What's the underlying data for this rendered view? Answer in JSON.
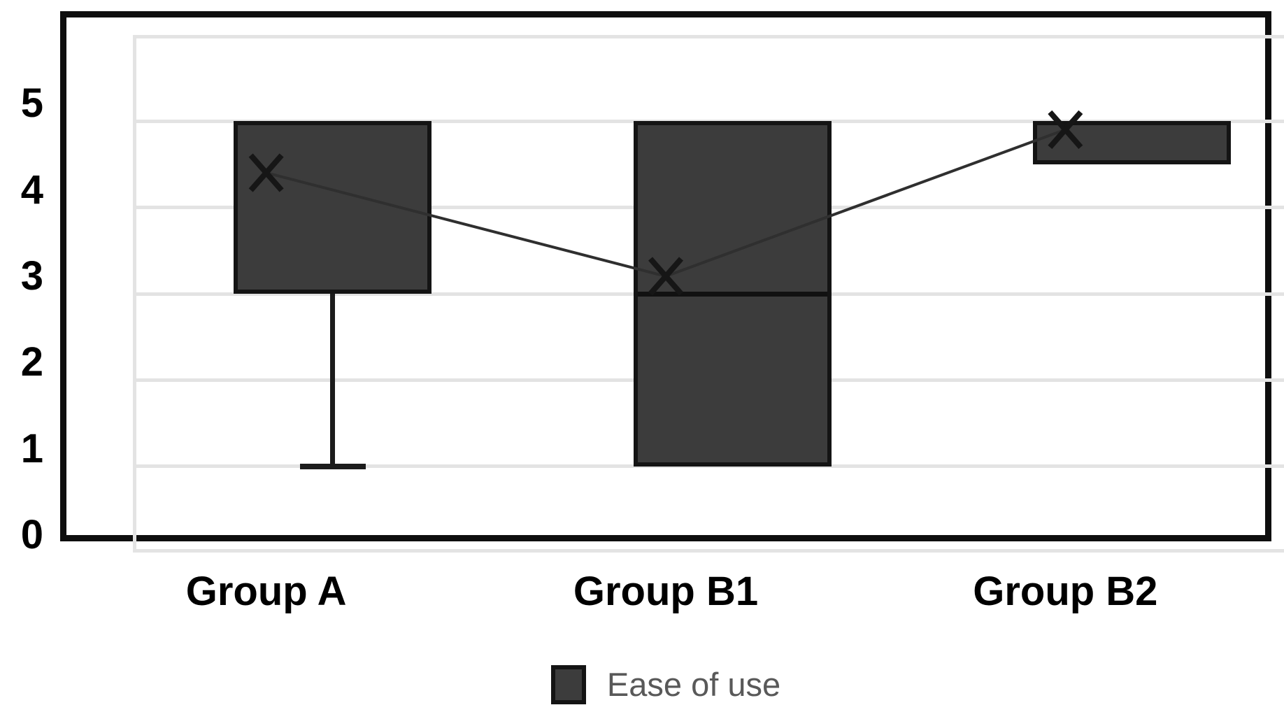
{
  "chart_data": {
    "type": "boxplot",
    "title": "",
    "categories": [
      "Group A",
      "Group B1",
      "Group B2"
    ],
    "series": [
      {
        "name": "Ease of use",
        "points": [
          {
            "category": "Group A",
            "box_low": 3,
            "box_high": 5,
            "whisker_low": 1,
            "whisker_high": null,
            "median": null,
            "mean": 4.2
          },
          {
            "category": "Group B1",
            "box_low": 1,
            "box_high": 5,
            "whisker_low": null,
            "whisker_high": null,
            "median": 3,
            "mean": 3
          },
          {
            "category": "Group B2",
            "box_low": 4.5,
            "box_high": 5,
            "whisker_low": null,
            "whisker_high": null,
            "median": null,
            "mean": 4.7
          }
        ]
      }
    ],
    "yaxis": {
      "min": 0,
      "max": 6,
      "tick_labels": [
        "0",
        "1",
        "2",
        "3",
        "4",
        "5"
      ],
      "tick_values": [
        0,
        1,
        2,
        3,
        4,
        5
      ]
    },
    "xlabel": "",
    "ylabel": "",
    "grid": true,
    "mean_marker": "x",
    "mean_points_connected_by_line": true,
    "legend": {
      "position": "bottom",
      "items": [
        {
          "label": "Ease of use",
          "swatch_color": "#3c3c3c"
        }
      ]
    },
    "colors": {
      "box_fill": "#3c3c3c",
      "box_border": "#141414",
      "median_line": "#111111",
      "whisker": "#1c1c1c",
      "gridline": "#e3e3e3",
      "frame": "#0e0e0e",
      "axis_label": "#000000",
      "legend_text": "#595959",
      "mean_line": "#2f2f2f",
      "mean_marker_color": "#161616",
      "background": "#ffffff"
    }
  }
}
